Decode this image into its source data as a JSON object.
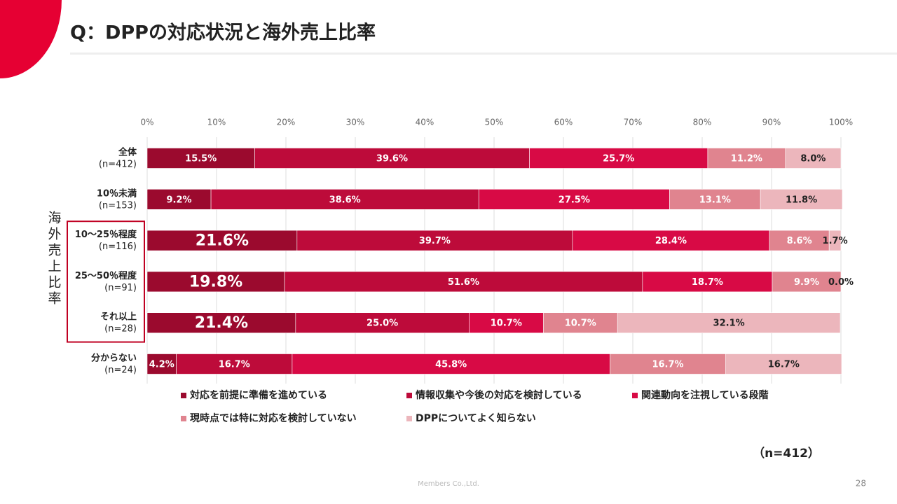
{
  "header": {
    "title": "Q：DPPの対応状況と海外売上比率"
  },
  "chart_data": {
    "type": "stacked-bar-horizontal",
    "axis_label": "海外売上比率",
    "categories": [
      "全体",
      "10％未満",
      "10～25％程度",
      "25～50％程度",
      "それ以上",
      "分からない"
    ],
    "sample_sizes": [
      "(n=412)",
      "(n=153)",
      "(n=116)",
      "(n=91)",
      "(n=28)",
      "(n=24)"
    ],
    "highlight_rows": [
      2,
      3,
      4
    ],
    "xlim": [
      0,
      100
    ],
    "xticks": [
      {
        "value": 0,
        "label": "0%"
      },
      {
        "value": 10,
        "label": "10%"
      },
      {
        "value": 20,
        "label": "20%"
      },
      {
        "value": 30,
        "label": "30%"
      },
      {
        "value": 40,
        "label": "40%"
      },
      {
        "value": 50,
        "label": "50%"
      },
      {
        "value": 60,
        "label": "60%"
      },
      {
        "value": 70,
        "label": "70%"
      },
      {
        "value": 80,
        "label": "80%"
      },
      {
        "value": 90,
        "label": "90%"
      },
      {
        "value": 100,
        "label": "100%"
      }
    ],
    "grid": true,
    "series": [
      {
        "name": "対応を前提に準備を進めている",
        "color": "#9b0a2e",
        "values": [
          15.5,
          9.2,
          21.6,
          19.8,
          21.4,
          4.2
        ],
        "value_labels": [
          "15.5%",
          "9.2%",
          "21.6%",
          "19.8%",
          "21.4%",
          "4.2%"
        ]
      },
      {
        "name": "情報収集や今後の対応を検討している",
        "color": "#bd0b3a",
        "values": [
          39.6,
          38.6,
          39.7,
          51.6,
          25.0,
          16.7
        ],
        "value_labels": [
          "39.6%",
          "38.6%",
          "39.7%",
          "51.6%",
          "25.0%",
          "16.7%"
        ]
      },
      {
        "name": "関連動向を注視している段階",
        "color": "#d80a45",
        "values": [
          25.7,
          27.5,
          28.4,
          18.7,
          10.7,
          45.8
        ],
        "value_labels": [
          "25.7%",
          "27.5%",
          "28.4%",
          "18.7%",
          "10.7%",
          "45.8%"
        ]
      },
      {
        "name": "現時点では特に対応を検討していない",
        "color": "#e0848f",
        "values": [
          11.2,
          13.1,
          8.6,
          9.9,
          10.7,
          16.7
        ],
        "value_labels": [
          "11.2%",
          "13.1%",
          "8.6%",
          "9.9%",
          "10.7%",
          "16.7%"
        ]
      },
      {
        "name": "DPPについてよく知らない",
        "color": "#ecb6bc",
        "values": [
          8.0,
          11.8,
          1.7,
          0.0,
          32.1,
          16.7
        ],
        "value_labels": [
          "8.0%",
          "11.8%",
          "1.7%",
          "0.0%",
          "32.1%",
          "16.7%"
        ]
      }
    ],
    "note": "（n=412）"
  },
  "footer": {
    "company": "Members Co.,Ltd.",
    "page": "28"
  }
}
